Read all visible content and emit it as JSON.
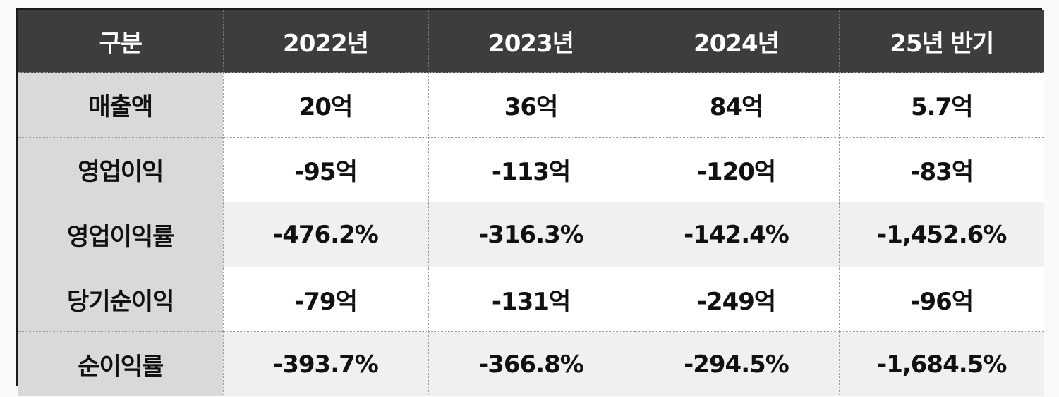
{
  "table": {
    "headers": [
      "구분",
      "2022년",
      "2023년",
      "2024년",
      "25년 반기"
    ],
    "rows": [
      {
        "label": "매출액",
        "values": [
          "20억",
          "36억",
          "84억",
          "5.7억"
        ]
      },
      {
        "label": "영업이익",
        "values": [
          "-95억",
          "-113억",
          "-120억",
          "-83억"
        ]
      },
      {
        "label": "영업이익률",
        "values": [
          "-476.2%",
          "-316.3%",
          "-142.4%",
          "-1,452.6%"
        ]
      },
      {
        "label": "당기순이익",
        "values": [
          "-79억",
          "-131억",
          "-249억",
          "-96억"
        ]
      },
      {
        "label": "순이익률",
        "values": [
          "-393.7%",
          "-366.8%",
          "-294.5%",
          "-1,684.5%"
        ]
      }
    ]
  },
  "colors": {
    "header_bg": "#3d3d3d",
    "header_text": "#ffffff",
    "rowhead_bg": "#d9d9d9",
    "alt_row_bg": "#f0f0f0",
    "border": "#1a1a1a"
  }
}
